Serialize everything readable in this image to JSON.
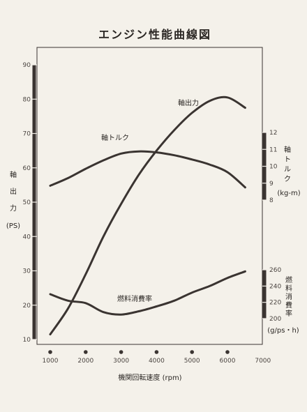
{
  "chart_data": {
    "type": "line",
    "title": "エンジン性能曲線図",
    "xlabel": "機関回転速度 (rpm)",
    "x_ticks": [
      1000,
      2000,
      3000,
      4000,
      5000,
      6000,
      7000
    ],
    "xlim": [
      750,
      7000
    ],
    "left_axis": {
      "label_chars": [
        "軸",
        "出",
        "力"
      ],
      "unit": "(PS)",
      "ticks": [
        10,
        20,
        30,
        40,
        50,
        60,
        70,
        80,
        90
      ],
      "ylim": [
        5,
        92
      ]
    },
    "torque_axis": {
      "label_chars": [
        "軸",
        "ト",
        "ル",
        "ク"
      ],
      "unit": "(kg-m)",
      "ticks": [
        8,
        9,
        10,
        11,
        12
      ],
      "ylim": [
        8,
        12
      ]
    },
    "fuel_axis": {
      "label_chars": [
        "燃",
        "料",
        "消",
        "費",
        "率"
      ],
      "unit": "(g/ps・h)",
      "ticks": [
        200,
        220,
        240,
        260
      ],
      "ylim": [
        200,
        260
      ]
    },
    "series": [
      {
        "name": "軸出力",
        "axis": "left",
        "x": [
          1000,
          1500,
          2000,
          2500,
          3000,
          3500,
          4000,
          4500,
          5000,
          5500,
          6000,
          6500
        ],
        "y": [
          11.5,
          19,
          29,
          40,
          49.5,
          58,
          65,
          71,
          76,
          79.5,
          80.5,
          77.5
        ]
      },
      {
        "name": "軸トルク",
        "axis": "torque",
        "x": [
          1000,
          1500,
          2000,
          2500,
          3000,
          3500,
          4000,
          4500,
          5000,
          5500,
          6000,
          6500
        ],
        "y": [
          8.85,
          9.3,
          9.85,
          10.35,
          10.75,
          10.88,
          10.82,
          10.65,
          10.4,
          10.1,
          9.65,
          8.75
        ]
      },
      {
        "name": "燃料消費率",
        "axis": "fuel",
        "x": [
          1000,
          1500,
          2000,
          2500,
          3000,
          3500,
          4000,
          4500,
          5000,
          5500,
          6000,
          6500
        ],
        "y": [
          230,
          222,
          219,
          208,
          205,
          209,
          215,
          222,
          232,
          240,
          250,
          258
        ]
      }
    ],
    "dot_x": [
      1000,
      2000,
      3000,
      4000,
      5000,
      6000
    ]
  }
}
